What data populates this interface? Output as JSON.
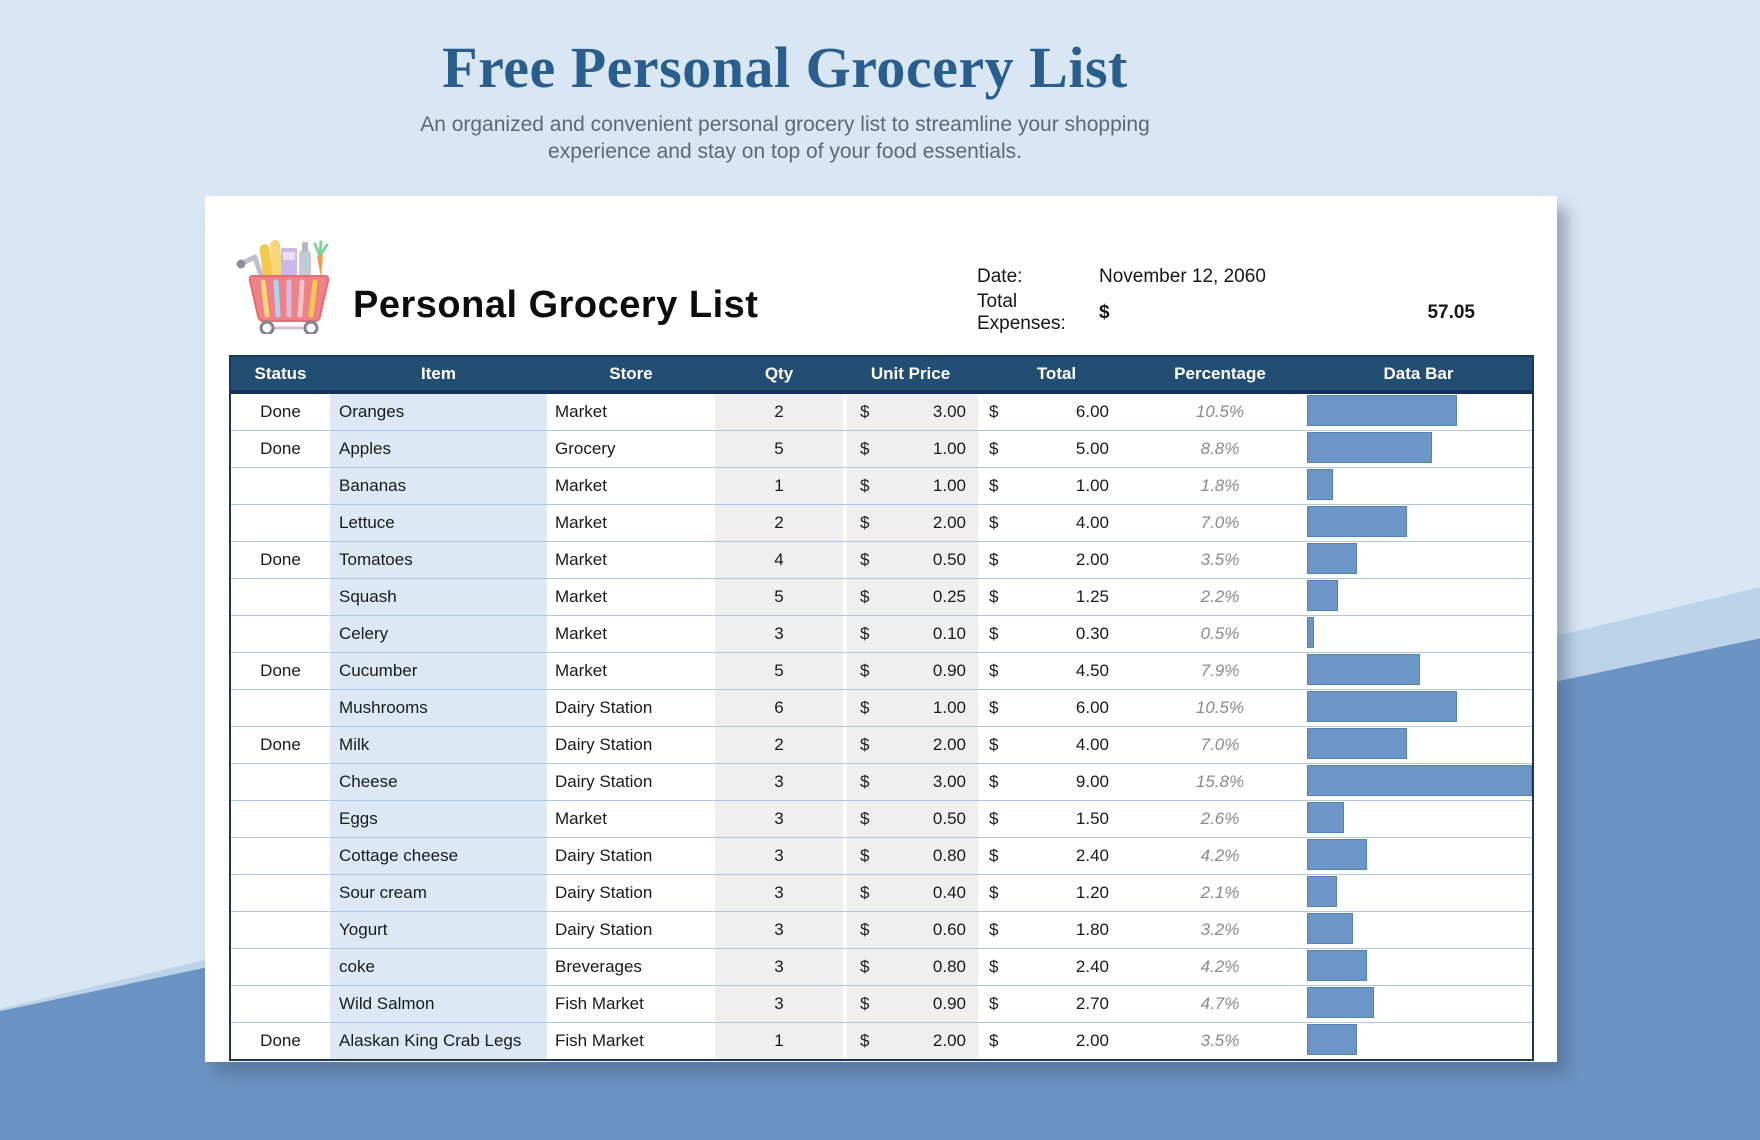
{
  "page": {
    "title": "Free Personal Grocery List",
    "subtitle_line1": "An organized and convenient personal grocery list to streamline your shopping",
    "subtitle_line2": "experience and stay on top of your food essentials."
  },
  "card": {
    "title": "Personal Grocery List",
    "date_label": "Date:",
    "date_value": "November 12, 2060",
    "expenses_label": "Total Expenses:",
    "currency_symbol": "$",
    "expenses_value": "57.05"
  },
  "table": {
    "columns": [
      "Status",
      "Item",
      "Store",
      "Qty",
      "Unit Price",
      "Total",
      "Percentage",
      "Data Bar"
    ],
    "max_percentage": 15.8,
    "rows": [
      {
        "status": "Done",
        "item": "Oranges",
        "store": "Market",
        "qty": "2",
        "unit_price": "3.00",
        "total": "6.00",
        "percentage": "10.5%",
        "pct": 10.5
      },
      {
        "status": "Done",
        "item": "Apples",
        "store": "Grocery",
        "qty": "5",
        "unit_price": "1.00",
        "total": "5.00",
        "percentage": "8.8%",
        "pct": 8.8
      },
      {
        "status": "",
        "item": "Bananas",
        "store": "Market",
        "qty": "1",
        "unit_price": "1.00",
        "total": "1.00",
        "percentage": "1.8%",
        "pct": 1.8
      },
      {
        "status": "",
        "item": "Lettuce",
        "store": "Market",
        "qty": "2",
        "unit_price": "2.00",
        "total": "4.00",
        "percentage": "7.0%",
        "pct": 7.0
      },
      {
        "status": "Done",
        "item": "Tomatoes",
        "store": "Market",
        "qty": "4",
        "unit_price": "0.50",
        "total": "2.00",
        "percentage": "3.5%",
        "pct": 3.5
      },
      {
        "status": "",
        "item": "Squash",
        "store": "Market",
        "qty": "5",
        "unit_price": "0.25",
        "total": "1.25",
        "percentage": "2.2%",
        "pct": 2.2
      },
      {
        "status": "",
        "item": "Celery",
        "store": "Market",
        "qty": "3",
        "unit_price": "0.10",
        "total": "0.30",
        "percentage": "0.5%",
        "pct": 0.5
      },
      {
        "status": "Done",
        "item": "Cucumber",
        "store": "Market",
        "qty": "5",
        "unit_price": "0.90",
        "total": "4.50",
        "percentage": "7.9%",
        "pct": 7.9
      },
      {
        "status": "",
        "item": "Mushrooms",
        "store": "Dairy Station",
        "qty": "6",
        "unit_price": "1.00",
        "total": "6.00",
        "percentage": "10.5%",
        "pct": 10.5
      },
      {
        "status": "Done",
        "item": "Milk",
        "store": "Dairy Station",
        "qty": "2",
        "unit_price": "2.00",
        "total": "4.00",
        "percentage": "7.0%",
        "pct": 7.0
      },
      {
        "status": "",
        "item": "Cheese",
        "store": "Dairy Station",
        "qty": "3",
        "unit_price": "3.00",
        "total": "9.00",
        "percentage": "15.8%",
        "pct": 15.8
      },
      {
        "status": "",
        "item": "Eggs",
        "store": "Market",
        "qty": "3",
        "unit_price": "0.50",
        "total": "1.50",
        "percentage": "2.6%",
        "pct": 2.6
      },
      {
        "status": "",
        "item": "Cottage cheese",
        "store": "Dairy Station",
        "qty": "3",
        "unit_price": "0.80",
        "total": "2.40",
        "percentage": "4.2%",
        "pct": 4.2
      },
      {
        "status": "",
        "item": "Sour cream",
        "store": "Dairy Station",
        "qty": "3",
        "unit_price": "0.40",
        "total": "1.20",
        "percentage": "2.1%",
        "pct": 2.1
      },
      {
        "status": "",
        "item": "Yogurt",
        "store": "Dairy Station",
        "qty": "3",
        "unit_price": "0.60",
        "total": "1.80",
        "percentage": "3.2%",
        "pct": 3.2
      },
      {
        "status": "",
        "item": "coke",
        "store": "Breverages",
        "qty": "3",
        "unit_price": "0.80",
        "total": "2.40",
        "percentage": "4.2%",
        "pct": 4.2
      },
      {
        "status": "",
        "item": "Wild Salmon",
        "store": "Fish Market",
        "qty": "3",
        "unit_price": "0.90",
        "total": "2.70",
        "percentage": "4.7%",
        "pct": 4.7
      },
      {
        "status": "Done",
        "item": "Alaskan King Crab Legs",
        "store": "Fish Market",
        "qty": "1",
        "unit_price": "2.00",
        "total": "2.00",
        "percentage": "3.5%",
        "pct": 3.5
      }
    ]
  },
  "colors": {
    "page-bg": "#D9E6F3",
    "band": "#6B93C3",
    "wedge": "#BDD3E9",
    "title-color": "#2A5E8C",
    "header-bg": "#224E74",
    "table-border": "#17375E",
    "divider": "#AFC7E2",
    "item-col-bg": "#DCE9F5",
    "money-col-bg": "#EFEFEF",
    "bar-fill": "#6D96C8",
    "bar-border": "#5580B2"
  }
}
